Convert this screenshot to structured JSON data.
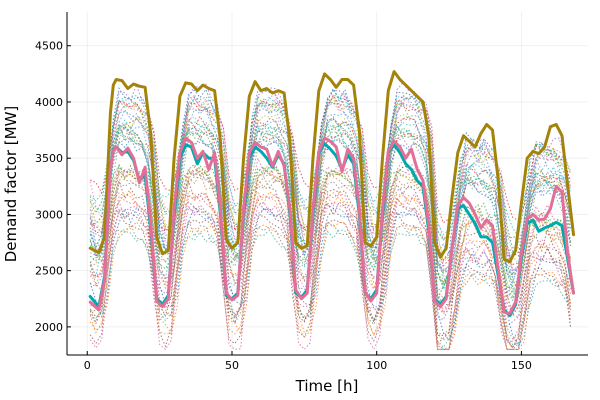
{
  "chart_data": {
    "type": "line",
    "xlabel": "Time [h]",
    "ylabel": "Demand factor [MW]",
    "xlim": [
      -7,
      173
    ],
    "ylim": [
      1750,
      4800
    ],
    "x_ticks": [
      0,
      50,
      100,
      150
    ],
    "y_ticks": [
      2000,
      2500,
      3000,
      3500,
      4000,
      4500
    ],
    "grid": true,
    "legend": "none",
    "x_start": 1,
    "x_end": 168,
    "highlight_series": [
      {
        "color": "#a38309",
        "points": [
          [
            1,
            2700
          ],
          [
            4,
            2660
          ],
          [
            6,
            2800
          ],
          [
            8,
            3900
          ],
          [
            9,
            4150
          ],
          [
            10,
            4200
          ],
          [
            12,
            4190
          ],
          [
            14,
            4120
          ],
          [
            16,
            4160
          ],
          [
            18,
            4140
          ],
          [
            20,
            4130
          ],
          [
            22,
            3700
          ],
          [
            24,
            2800
          ],
          [
            26,
            2650
          ],
          [
            28,
            2680
          ],
          [
            30,
            3500
          ],
          [
            32,
            4050
          ],
          [
            34,
            4170
          ],
          [
            36,
            4160
          ],
          [
            38,
            4100
          ],
          [
            40,
            4150
          ],
          [
            42,
            4120
          ],
          [
            44,
            4100
          ],
          [
            46,
            3650
          ],
          [
            48,
            2780
          ],
          [
            50,
            2700
          ],
          [
            52,
            2750
          ],
          [
            54,
            3500
          ],
          [
            56,
            4050
          ],
          [
            58,
            4180
          ],
          [
            60,
            4100
          ],
          [
            62,
            4120
          ],
          [
            64,
            4080
          ],
          [
            66,
            4100
          ],
          [
            68,
            4080
          ],
          [
            70,
            3650
          ],
          [
            72,
            2750
          ],
          [
            74,
            2700
          ],
          [
            76,
            2720
          ],
          [
            78,
            3500
          ],
          [
            80,
            4100
          ],
          [
            82,
            4250
          ],
          [
            84,
            4200
          ],
          [
            86,
            4130
          ],
          [
            88,
            4200
          ],
          [
            90,
            4200
          ],
          [
            92,
            4150
          ],
          [
            94,
            3750
          ],
          [
            96,
            2750
          ],
          [
            98,
            2720
          ],
          [
            100,
            2800
          ],
          [
            102,
            3500
          ],
          [
            104,
            4100
          ],
          [
            106,
            4270
          ],
          [
            108,
            4200
          ],
          [
            110,
            4150
          ],
          [
            112,
            4100
          ],
          [
            114,
            4050
          ],
          [
            116,
            4000
          ],
          [
            118,
            3700
          ],
          [
            120,
            2750
          ],
          [
            122,
            2620
          ],
          [
            124,
            2700
          ],
          [
            126,
            3150
          ],
          [
            128,
            3550
          ],
          [
            130,
            3700
          ],
          [
            132,
            3650
          ],
          [
            134,
            3600
          ],
          [
            136,
            3720
          ],
          [
            138,
            3800
          ],
          [
            140,
            3750
          ],
          [
            142,
            3300
          ],
          [
            144,
            2600
          ],
          [
            146,
            2580
          ],
          [
            148,
            2680
          ],
          [
            150,
            3100
          ],
          [
            152,
            3500
          ],
          [
            154,
            3560
          ],
          [
            156,
            3540
          ],
          [
            158,
            3600
          ],
          [
            160,
            3780
          ],
          [
            162,
            3800
          ],
          [
            164,
            3700
          ],
          [
            166,
            3250
          ],
          [
            168,
            2820
          ]
        ]
      },
      {
        "color": "#00a9ad",
        "points": [
          [
            1,
            2270
          ],
          [
            4,
            2180
          ],
          [
            6,
            2450
          ],
          [
            8,
            3400
          ],
          [
            9,
            3580
          ],
          [
            10,
            3600
          ],
          [
            12,
            3550
          ],
          [
            14,
            3560
          ],
          [
            16,
            3480
          ],
          [
            18,
            3300
          ],
          [
            20,
            3350
          ],
          [
            22,
            2850
          ],
          [
            24,
            2250
          ],
          [
            26,
            2200
          ],
          [
            28,
            2280
          ],
          [
            30,
            3000
          ],
          [
            32,
            3500
          ],
          [
            34,
            3620
          ],
          [
            36,
            3600
          ],
          [
            38,
            3450
          ],
          [
            40,
            3550
          ],
          [
            42,
            3500
          ],
          [
            44,
            3500
          ],
          [
            46,
            3000
          ],
          [
            48,
            2280
          ],
          [
            50,
            2250
          ],
          [
            52,
            2300
          ],
          [
            54,
            3000
          ],
          [
            56,
            3500
          ],
          [
            58,
            3600
          ],
          [
            60,
            3560
          ],
          [
            62,
            3500
          ],
          [
            64,
            3420
          ],
          [
            66,
            3530
          ],
          [
            68,
            3450
          ],
          [
            70,
            3000
          ],
          [
            72,
            2300
          ],
          [
            74,
            2260
          ],
          [
            76,
            2330
          ],
          [
            78,
            3000
          ],
          [
            80,
            3550
          ],
          [
            82,
            3630
          ],
          [
            84,
            3580
          ],
          [
            86,
            3520
          ],
          [
            88,
            3400
          ],
          [
            90,
            3530
          ],
          [
            92,
            3450
          ],
          [
            94,
            3000
          ],
          [
            96,
            2300
          ],
          [
            98,
            2250
          ],
          [
            100,
            2330
          ],
          [
            102,
            3000
          ],
          [
            104,
            3550
          ],
          [
            106,
            3620
          ],
          [
            108,
            3550
          ],
          [
            110,
            3450
          ],
          [
            112,
            3400
          ],
          [
            114,
            3300
          ],
          [
            116,
            3250
          ],
          [
            118,
            2850
          ],
          [
            120,
            2250
          ],
          [
            122,
            2200
          ],
          [
            124,
            2270
          ],
          [
            126,
            2700
          ],
          [
            128,
            3050
          ],
          [
            130,
            3080
          ],
          [
            132,
            3000
          ],
          [
            134,
            2920
          ],
          [
            136,
            2800
          ],
          [
            138,
            2800
          ],
          [
            140,
            2750
          ],
          [
            142,
            2450
          ],
          [
            144,
            2150
          ],
          [
            146,
            2100
          ],
          [
            148,
            2200
          ],
          [
            150,
            2600
          ],
          [
            152,
            2920
          ],
          [
            154,
            2950
          ],
          [
            156,
            2850
          ],
          [
            158,
            2880
          ],
          [
            160,
            2900
          ],
          [
            162,
            2930
          ],
          [
            164,
            2900
          ],
          [
            166,
            2600
          ],
          [
            168,
            2300
          ]
        ]
      },
      {
        "color": "#e26f98",
        "points": [
          [
            1,
            2220
          ],
          [
            4,
            2150
          ],
          [
            6,
            2420
          ],
          [
            8,
            3400
          ],
          [
            9,
            3570
          ],
          [
            10,
            3600
          ],
          [
            12,
            3530
          ],
          [
            14,
            3590
          ],
          [
            16,
            3500
          ],
          [
            18,
            3280
          ],
          [
            20,
            3420
          ],
          [
            22,
            2900
          ],
          [
            24,
            2230
          ],
          [
            26,
            2180
          ],
          [
            28,
            2250
          ],
          [
            30,
            3050
          ],
          [
            32,
            3550
          ],
          [
            34,
            3680
          ],
          [
            36,
            3640
          ],
          [
            38,
            3500
          ],
          [
            40,
            3560
          ],
          [
            42,
            3400
          ],
          [
            44,
            3550
          ],
          [
            46,
            3050
          ],
          [
            48,
            2300
          ],
          [
            50,
            2240
          ],
          [
            52,
            2280
          ],
          [
            54,
            3050
          ],
          [
            56,
            3550
          ],
          [
            58,
            3640
          ],
          [
            60,
            3600
          ],
          [
            62,
            3580
          ],
          [
            64,
            3430
          ],
          [
            66,
            3560
          ],
          [
            68,
            3430
          ],
          [
            70,
            3050
          ],
          [
            72,
            2330
          ],
          [
            74,
            2250
          ],
          [
            76,
            2300
          ],
          [
            78,
            3050
          ],
          [
            80,
            3560
          ],
          [
            82,
            3680
          ],
          [
            84,
            3650
          ],
          [
            86,
            3600
          ],
          [
            88,
            3380
          ],
          [
            90,
            3580
          ],
          [
            92,
            3500
          ],
          [
            94,
            3050
          ],
          [
            96,
            2310
          ],
          [
            98,
            2230
          ],
          [
            100,
            2300
          ],
          [
            102,
            3050
          ],
          [
            104,
            3560
          ],
          [
            106,
            3650
          ],
          [
            108,
            3600
          ],
          [
            110,
            3500
          ],
          [
            112,
            3580
          ],
          [
            114,
            3400
          ],
          [
            116,
            3300
          ],
          [
            118,
            2900
          ],
          [
            120,
            2230
          ],
          [
            122,
            2180
          ],
          [
            124,
            2250
          ],
          [
            126,
            2700
          ],
          [
            128,
            3080
          ],
          [
            130,
            3150
          ],
          [
            132,
            3100
          ],
          [
            134,
            3000
          ],
          [
            136,
            2880
          ],
          [
            138,
            2950
          ],
          [
            140,
            2900
          ],
          [
            142,
            2500
          ],
          [
            144,
            2130
          ],
          [
            146,
            2120
          ],
          [
            148,
            2220
          ],
          [
            150,
            2650
          ],
          [
            152,
            2960
          ],
          [
            154,
            3000
          ],
          [
            156,
            2950
          ],
          [
            158,
            2960
          ],
          [
            160,
            3050
          ],
          [
            162,
            3250
          ],
          [
            164,
            3200
          ],
          [
            166,
            2650
          ],
          [
            168,
            2300
          ]
        ]
      }
    ],
    "background_series": {
      "count": 44,
      "style": "dotted",
      "profile": [
        [
          0,
          -0.55
        ],
        [
          3,
          -0.65
        ],
        [
          5,
          -0.5
        ],
        [
          7,
          0.1
        ],
        [
          9,
          0.45
        ],
        [
          11,
          0.55
        ],
        [
          13,
          0.48
        ],
        [
          15,
          0.52
        ],
        [
          17,
          0.46
        ],
        [
          19,
          0.4
        ],
        [
          21,
          0.25
        ],
        [
          23,
          -0.3
        ],
        [
          24,
          -0.55
        ]
      ],
      "week_scale": [
        1,
        1,
        1,
        1,
        1,
        0.62,
        0.6
      ],
      "amplitude_range": [
        620,
        1150
      ],
      "base_range": [
        2450,
        3650
      ],
      "colors": [
        "#1f77b4",
        "#ff7f0e",
        "#2ca02c",
        "#d62728",
        "#9467bd",
        "#8c564b",
        "#e377c2",
        "#17becf",
        "#bcbd22",
        "#7f7f7f",
        "#3bab9a",
        "#c9783a",
        "#5b8fd6",
        "#d65ba4",
        "#6aa84f"
      ]
    }
  }
}
